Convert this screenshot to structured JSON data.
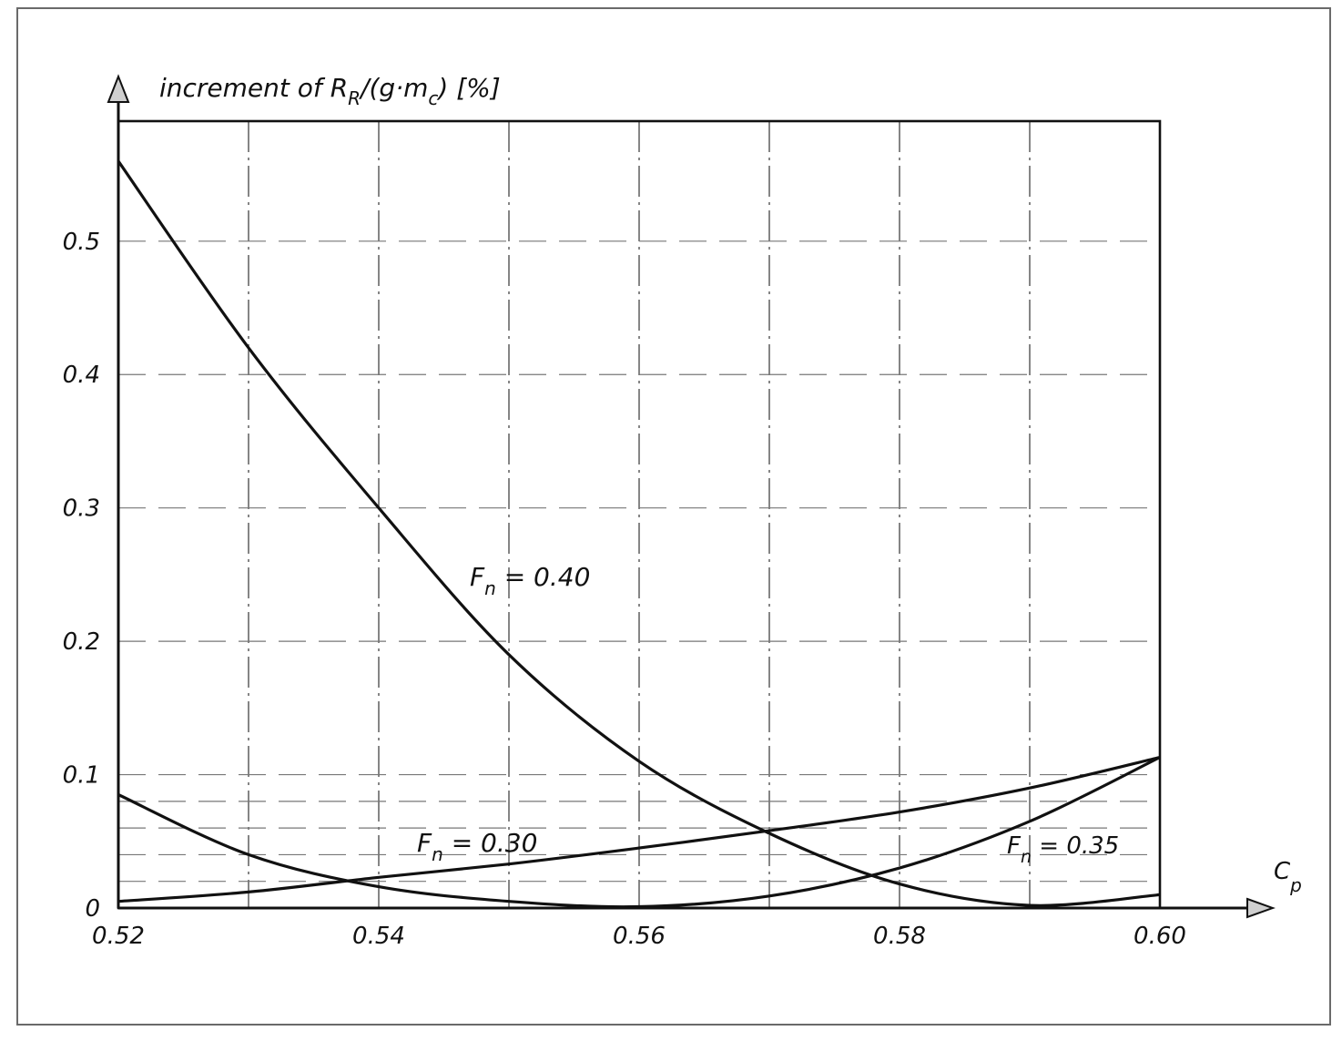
{
  "chart_data": {
    "type": "line",
    "ylabel": {
      "prefix": "increment of ",
      "R": "R",
      "R_sub": "R",
      "mid": "/(g·m",
      "m_sub": "c",
      "suffix": ") [%]"
    },
    "xlabel": {
      "main": "C",
      "sub": "p"
    },
    "xlim": [
      0.52,
      0.6
    ],
    "ylim": [
      0,
      0.59
    ],
    "x_ticks": [
      "0.52",
      "0.54",
      "0.56",
      "0.58",
      "0.60"
    ],
    "x_tick_values": [
      0.52,
      0.54,
      0.56,
      0.58,
      0.6
    ],
    "y_ticks": [
      "0",
      "0.1",
      "0.2",
      "0.3",
      "0.4",
      "0.5"
    ],
    "y_tick_values": [
      0,
      0.1,
      0.2,
      0.3,
      0.4,
      0.5
    ],
    "grid": true,
    "series": [
      {
        "name": "F_n = 0.40",
        "label": {
          "F": "F",
          "sub": "n",
          "value": " = 0.40"
        },
        "x": [
          0.52,
          0.53,
          0.54,
          0.55,
          0.56,
          0.57,
          0.58,
          0.59,
          0.6
        ],
        "y": [
          0.56,
          0.42,
          0.3,
          0.19,
          0.11,
          0.056,
          0.018,
          0.002,
          0.01
        ]
      },
      {
        "name": "F_n = 0.30",
        "label": {
          "F": "F",
          "sub": "n",
          "value": " = 0.30"
        },
        "x": [
          0.52,
          0.53,
          0.54,
          0.55,
          0.56,
          0.57,
          0.58,
          0.59,
          0.6
        ],
        "y": [
          0.005,
          0.012,
          0.023,
          0.033,
          0.045,
          0.058,
          0.072,
          0.09,
          0.113
        ]
      },
      {
        "name": "F_n = 0.35",
        "label": {
          "F": "F",
          "sub": "n",
          "value": " = 0.35"
        },
        "x": [
          0.52,
          0.53,
          0.54,
          0.55,
          0.56,
          0.57,
          0.58,
          0.59,
          0.6
        ],
        "y": [
          0.085,
          0.04,
          0.016,
          0.005,
          0.001,
          0.009,
          0.03,
          0.065,
          0.113
        ]
      }
    ]
  }
}
